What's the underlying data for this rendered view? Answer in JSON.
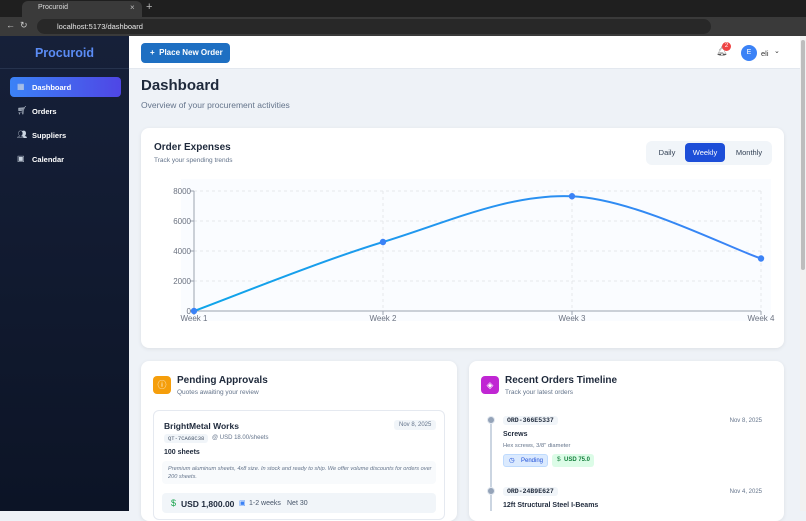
{
  "browser": {
    "tab_title": "Procuroid",
    "url": "localhost:5173/dashboard"
  },
  "sidebar": {
    "brand": "Procuroid",
    "nav": [
      "Dashboard",
      "Orders",
      "Suppliers",
      "Calendar"
    ],
    "active": "Dashboard"
  },
  "header": {
    "button": "Place New Order",
    "notifications": 2,
    "avatar": "E",
    "user": "eli"
  },
  "page": {
    "title": "Dashboard",
    "subtitle": "Overview of your procurement activities"
  },
  "chart_data": {
    "type": "line",
    "title": "Order Expenses",
    "subtitle": "Track your spending trends",
    "periods": [
      "Daily",
      "Weekly",
      "Monthly"
    ],
    "selected_period": "Weekly",
    "categories": [
      "Week 1",
      "Week 2",
      "Week 3",
      "Week 4"
    ],
    "values": [
      0,
      4600,
      7650,
      3500
    ],
    "color": "#3b82f6",
    "ylim": [
      0,
      8000
    ],
    "yticks": [
      0,
      2000,
      4000,
      6000,
      8000
    ],
    "grid": true
  },
  "pending": {
    "title": "Pending Approvals",
    "subtitle": "Quotes awaiting your review",
    "item": {
      "supplier": "BrightMetal Works",
      "date": "Nov 8, 2025",
      "quote_id": "QT-7CA68C38",
      "unit_price": "@ USD 18.00/sheets",
      "quantity": "100 sheets",
      "note": "Premium aluminum sheets, 4x8 size. In stock and ready to ship. We offer volume discounts for orders over 200 sheets.",
      "total": "USD 1,800.00",
      "lead_time": "1-2 weeks",
      "terms": "Net 30"
    }
  },
  "timeline": {
    "title": "Recent Orders Timeline",
    "subtitle": "Track your latest orders",
    "orders": [
      {
        "id": "ORD-366E5337",
        "date": "Nov 8, 2025",
        "item": "Screws",
        "description": "Hex screws, 3/8\" diameter",
        "status": "Pending",
        "amount": "USD 75.0"
      },
      {
        "id": "ORD-24B9E627",
        "date": "Nov 4, 2025",
        "item": "12ft Structural Steel I-Beams"
      }
    ]
  }
}
